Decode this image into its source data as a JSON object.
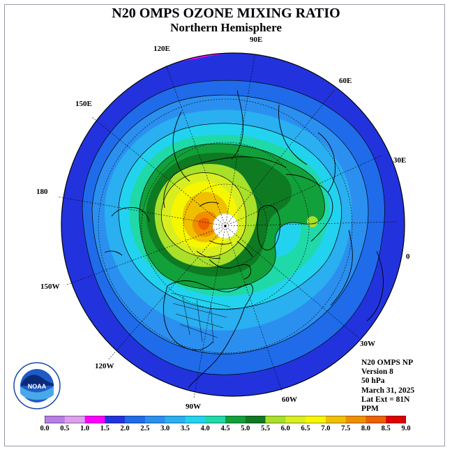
{
  "title": "N20 OMPS OZONE MIXING RATIO",
  "subtitle": "Northern Hemisphere",
  "longitude_labels": [
    "90E",
    "60E",
    "30E",
    "0",
    "30W",
    "60W",
    "90W",
    "120W",
    "150W",
    "180",
    "150E",
    "120E"
  ],
  "info": {
    "instrument": "N20 OMPS NP",
    "version": "Version 8",
    "level": "50 hPa",
    "date": "March 31, 2025",
    "lat_ext": "Lat Ext = 81N",
    "units": "PPM"
  },
  "logo": {
    "text": "NOAA",
    "ring_text": "NATIONAL OCEANIC AND ATMOSPHERIC ADMINISTRATION · U.S. DEPARTMENT OF COMMERCE"
  },
  "legend": {
    "ticks": [
      "0.0",
      "0.5",
      "1.0",
      "1.5",
      "2.0",
      "2.5",
      "3.0",
      "3.5",
      "4.0",
      "4.5",
      "5.0",
      "5.5",
      "6.0",
      "6.5",
      "7.0",
      "7.5",
      "8.0",
      "8.5",
      "9.0"
    ],
    "colors": [
      "#b87ee6",
      "#dca0ee",
      "#ff00ff",
      "#2233dd",
      "#1f6bea",
      "#2b8ff0",
      "#2aaff0",
      "#22d3f0",
      "#1fd9a8",
      "#12a03a",
      "#0e7a22",
      "#a8e02a",
      "#d8ee20",
      "#f6f600",
      "#f0c000",
      "#f09000",
      "#ee6000",
      "#e00000",
      "#8b5a36"
    ]
  },
  "colors": {
    "blue_outer": "#2233dd",
    "magenta_region": "#ff00ff",
    "pole_fill": "#ffffff"
  }
}
